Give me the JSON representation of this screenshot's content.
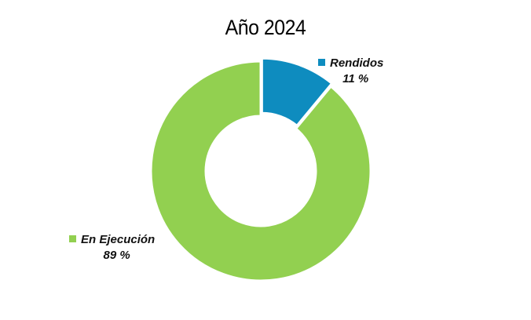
{
  "chart_data": {
    "type": "pie",
    "subtype": "donut",
    "title": "Año 2024",
    "legend": "data-labels",
    "slices": [
      {
        "name": "Rendidos",
        "value": 11,
        "label": "11 %",
        "color": "#0E8CBF"
      },
      {
        "name": "En Ejecución",
        "value": 89,
        "label": "89 %",
        "color": "#92D050"
      }
    ]
  }
}
